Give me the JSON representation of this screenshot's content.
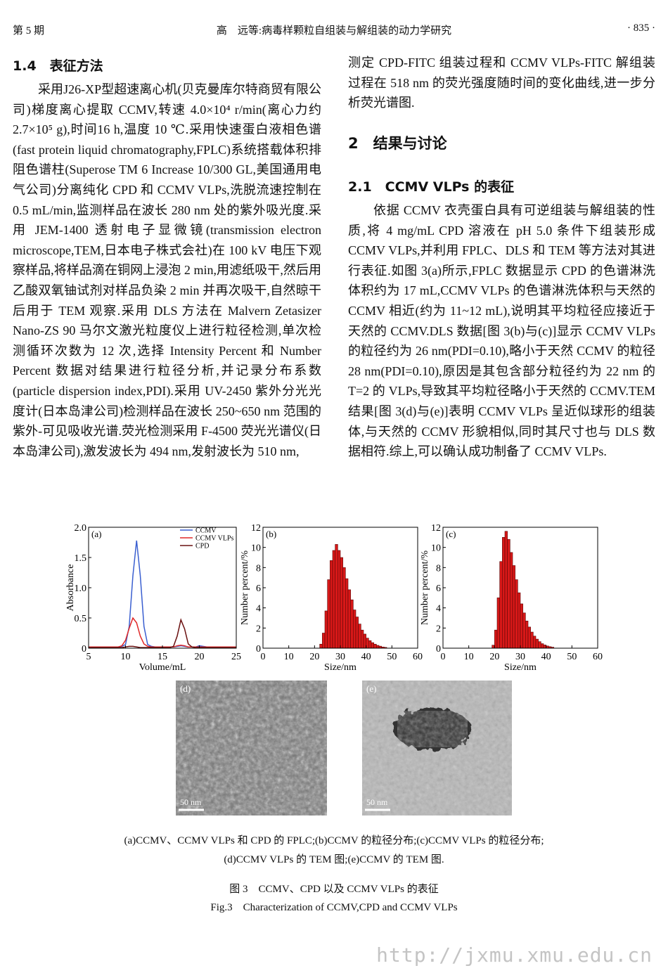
{
  "header": {
    "issue": "第 5 期",
    "title": "高　远等:病毒样颗粒自组装与解组装的动力学研究",
    "page": "· 835 ·"
  },
  "left_column": {
    "heading": "1.4　表征方法",
    "paragraph": "采用J26-XP型超速离心机(贝克曼库尔特商贸有限公司)梯度离心提取 CCMV,转速 4.0×10⁴ r/min(离心力约 2.7×10⁵ g),时间16 h,温度 10 ℃.采用快速蛋白液相色谱(fast protein liquid chromatography,FPLC)系统搭载体积排阻色谱柱(Superose TM 6 Increase 10/300 GL,美国通用电气公司)分离纯化 CPD 和 CCMV VLPs,洗脱流速控制在 0.5 mL/min,监测样品在波长 280 nm 处的紫外吸光度.采用 JEM-1400 透射电子显微镜(transmission electron microscope,TEM,日本电子株式会社)在 100 kV 电压下观察样品,将样品滴在铜网上浸泡 2 min,用滤纸吸干,然后用乙酸双氧铀试剂对样品负染 2 min 并再次吸干,自然晾干后用于 TEM 观察.采用 DLS 方法在 Malvern Zetasizer Nano-ZS 90 马尔文激光粒度仪上进行粒径检测,单次检测循环次数为 12 次,选择 Intensity Percent 和 Number Percent 数据对结果进行粒径分析,并记录分布系数(particle dispersion index,PDI).采用 UV-2450 紫外分光光度计(日本岛津公司)检测样品在波长 250~650 nm 范围的紫外-可见吸收光谱.荧光检测采用 F-4500 荧光光谱仪(日本岛津公司),激发波长为 494 nm,发射波长为 510 nm,"
  },
  "right_column": {
    "continuation": "测定 CPD-FITC 组装过程和 CCMV VLPs-FITC 解组装过程在 518 nm 的荧光强度随时间的变化曲线,进一步分析荧光谱图.",
    "heading": "2　结果与讨论",
    "subheading": "2.1　CCMV VLPs 的表征",
    "paragraph": "依据 CCMV 衣壳蛋白具有可逆组装与解组装的性质,将 4 mg/mL CPD 溶液在 pH 5.0 条件下组装形成 CCMV VLPs,并利用 FPLC、DLS 和 TEM 等方法对其进行表征.如图 3(a)所示,FPLC 数据显示 CPD 的色谱淋洗体积约为 17 mL,CCMV VLPs 的色谱淋洗体积与天然的 CCMV 相近(约为 11~12 mL),说明其平均粒径应接近于天然的 CCMV.DLS 数据[图 3(b)与(c)]显示 CCMV VLPs 的粒径约为 26 nm(PDI=0.10),略小于天然 CCMV 的粒径 28 nm(PDI=0.10),原因是其包含部分粒径约为 22 nm 的 T=2 的 VLPs,导致其平均粒径略小于天然的 CCMV.TEM 结果[图 3(d)与(e)]表明 CCMV VLPs 呈近似球形的组装体,与天然的 CCMV 形貌相似,同时其尺寸也与 DLS 数据相符.综上,可以确认成功制备了 CCMV VLPs."
  },
  "chart_data": [
    {
      "type": "line",
      "panel": "(a)",
      "xlabel": "Volume/mL",
      "ylabel": "Absorbance",
      "x": [
        5,
        5.5,
        6,
        6.5,
        7,
        7.5,
        8,
        8.5,
        9,
        9.5,
        10,
        10.5,
        11,
        11.5,
        12,
        12.5,
        13,
        13.5,
        14,
        14.5,
        15,
        15.5,
        16,
        16.5,
        17,
        17.5,
        18,
        18.5,
        19,
        19.5,
        20,
        20.5,
        21,
        21.5,
        22,
        22.5,
        23,
        23.5,
        24,
        24.5,
        25
      ],
      "series": [
        {
          "name": "CCMV",
          "color": "#3a5fd0",
          "values": [
            0.02,
            0.02,
            0.02,
            0.02,
            0.02,
            0.02,
            0.02,
            0.02,
            0.02,
            0.03,
            0.06,
            0.36,
            1.2,
            1.78,
            1.2,
            0.36,
            0.06,
            0.03,
            0.02,
            0.02,
            0.02,
            0.02,
            0.02,
            0.02,
            0.03,
            0.04,
            0.03,
            0.02,
            0.02,
            0.02,
            0.04,
            0.03,
            0.02,
            0.02,
            0.02,
            0.02,
            0.02,
            0.02,
            0.02,
            0.02,
            0.02
          ]
        },
        {
          "name": "CCMV VLPs",
          "color": "#e02828",
          "values": [
            0.02,
            0.02,
            0.02,
            0.02,
            0.02,
            0.02,
            0.02,
            0.02,
            0.02,
            0.04,
            0.13,
            0.33,
            0.5,
            0.42,
            0.2,
            0.07,
            0.03,
            0.02,
            0.02,
            0.02,
            0.02,
            0.02,
            0.02,
            0.02,
            0.04,
            0.05,
            0.04,
            0.02,
            0.02,
            0.02,
            0.02,
            0.02,
            0.02,
            0.02,
            0.02,
            0.02,
            0.02,
            0.02,
            0.02,
            0.02,
            0.02
          ]
        },
        {
          "name": "CPD",
          "color": "#6a1010",
          "values": [
            0.01,
            0.01,
            0.01,
            0.01,
            0.01,
            0.01,
            0.01,
            0.01,
            0.01,
            0.01,
            0.02,
            0.03,
            0.03,
            0.02,
            0.01,
            0.01,
            0.01,
            0.01,
            0.01,
            0.01,
            0.01,
            0.01,
            0.01,
            0.03,
            0.2,
            0.47,
            0.32,
            0.07,
            0.02,
            0.01,
            0.01,
            0.01,
            0.01,
            0.01,
            0.01,
            0.01,
            0.01,
            0.01,
            0.01,
            0.01,
            0.01
          ]
        }
      ],
      "xlim": [
        5,
        25
      ],
      "xticks": [
        5,
        10,
        15,
        20,
        25
      ],
      "ylim": [
        0,
        2
      ],
      "yticks": [
        0,
        0.5,
        {
          "value": 1,
          "label": "1.0"
        },
        1.5,
        {
          "value": 2,
          "label": "2.0"
        }
      ],
      "legend": "upper right"
    },
    {
      "type": "histogram",
      "panel": "(b)",
      "xlabel": "Size/nm",
      "ylabel": "Number percent/%",
      "color": "#d81818",
      "bins": [
        22,
        23,
        24,
        25,
        26,
        27,
        28,
        29,
        30,
        31,
        32,
        33,
        34,
        35,
        36,
        37,
        38,
        39,
        40,
        41,
        42,
        43,
        44,
        45,
        46,
        47,
        48
      ],
      "values": [
        0.4,
        1.5,
        3.7,
        6.8,
        8.7,
        9.7,
        10.3,
        9.7,
        9.0,
        8.0,
        6.9,
        5.8,
        4.8,
        3.8,
        3.1,
        2.4,
        1.8,
        1.4,
        1.0,
        0.75,
        0.55,
        0.4,
        0.28,
        0.2,
        0.12,
        0.08
      ],
      "xlim": [
        0,
        60
      ],
      "xticks": [
        0,
        10,
        20,
        30,
        40,
        50,
        60
      ],
      "ylim": [
        0,
        12
      ],
      "yticks": [
        0,
        2,
        4,
        6,
        8,
        10,
        12
      ]
    },
    {
      "type": "histogram",
      "panel": "(c)",
      "xlabel": "Size/nm",
      "ylabel": "Number percent/%",
      "color": "#d81818",
      "bins": [
        19,
        20,
        21,
        22,
        23,
        24,
        25,
        26,
        27,
        28,
        29,
        30,
        31,
        32,
        33,
        34,
        35,
        36,
        37,
        38,
        39,
        40,
        41,
        42,
        43
      ],
      "values": [
        0.3,
        1.8,
        5.0,
        8.6,
        11.0,
        11.6,
        10.8,
        9.5,
        8.2,
        6.8,
        5.5,
        4.4,
        3.5,
        2.7,
        2.1,
        1.6,
        1.2,
        0.9,
        0.65,
        0.45,
        0.32,
        0.22,
        0.15,
        0.1
      ],
      "xlim": [
        0,
        60
      ],
      "xticks": [
        0,
        10,
        20,
        30,
        40,
        50,
        60
      ],
      "ylim": [
        0,
        12
      ],
      "yticks": [
        0,
        2,
        4,
        6,
        8,
        10,
        12
      ]
    }
  ],
  "tem_images": [
    {
      "panel": "(d)",
      "scale": "50 nm"
    },
    {
      "panel": "(e)",
      "scale": "50 nm"
    }
  ],
  "caption": {
    "panels": [
      "(a)CCMV、CCMV VLPs 和 CPD 的 FPLC;(b)CCMV 的粒径分布;(c)CCMV VLPs 的粒径分布;",
      "(d)CCMV VLPs 的 TEM 图;(e)CCMV 的 TEM 图."
    ],
    "title_cn": "图 3　CCMV、CPD 以及 CCMV VLPs 的表征",
    "title_en": "Fig.3　Characterization of CCMV,CPD and CCMV VLPs"
  },
  "footer": {
    "url": "http://jxmu.xmu.edu.cn"
  }
}
